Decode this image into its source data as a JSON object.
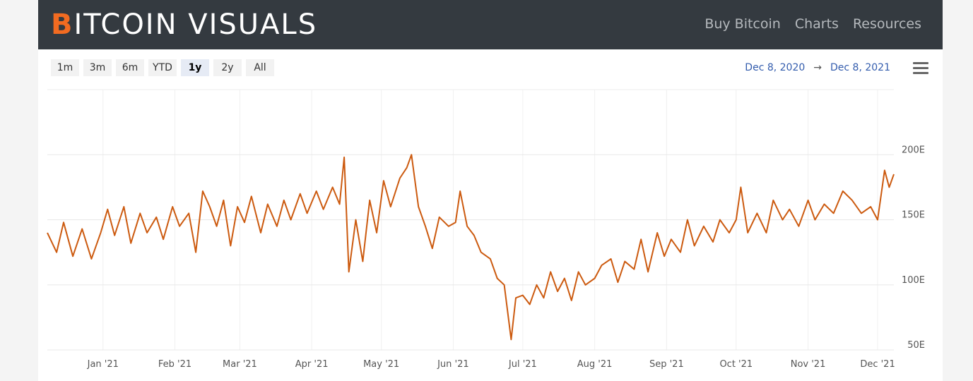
{
  "header": {
    "logo_mark": "B",
    "logo_text": "ITCOIN VISUALS",
    "nav": [
      "Buy Bitcoin",
      "Charts",
      "Resources"
    ]
  },
  "range_selector": {
    "buttons": [
      "1m",
      "3m",
      "6m",
      "YTD",
      "1y",
      "2y",
      "All"
    ],
    "selected": "1y",
    "from": "Dec 8, 2020",
    "arrow": "→",
    "to": "Dec 8, 2021"
  },
  "chart_data": {
    "type": "line",
    "color": "#cc5a0f",
    "grid": true,
    "x": [
      "2020-12-08",
      "2020-12-12",
      "2020-12-15",
      "2020-12-19",
      "2020-12-23",
      "2020-12-27",
      "2020-12-31",
      "2021-01-03",
      "2021-01-06",
      "2021-01-10",
      "2021-01-13",
      "2021-01-17",
      "2021-01-20",
      "2021-01-24",
      "2021-01-27",
      "2021-01-31",
      "2021-02-03",
      "2021-02-07",
      "2021-02-10",
      "2021-02-13",
      "2021-02-16",
      "2021-02-19",
      "2021-02-22",
      "2021-02-25",
      "2021-02-28",
      "2021-03-03",
      "2021-03-06",
      "2021-03-10",
      "2021-03-13",
      "2021-03-17",
      "2021-03-20",
      "2021-03-23",
      "2021-03-27",
      "2021-03-30",
      "2021-04-03",
      "2021-04-06",
      "2021-04-10",
      "2021-04-13",
      "2021-04-15",
      "2021-04-17",
      "2021-04-20",
      "2021-04-23",
      "2021-04-26",
      "2021-04-29",
      "2021-05-02",
      "2021-05-05",
      "2021-05-09",
      "2021-05-12",
      "2021-05-14",
      "2021-05-17",
      "2021-05-20",
      "2021-05-23",
      "2021-05-26",
      "2021-05-30",
      "2021-06-02",
      "2021-06-04",
      "2021-06-07",
      "2021-06-10",
      "2021-06-13",
      "2021-06-17",
      "2021-06-20",
      "2021-06-23",
      "2021-06-26",
      "2021-06-28",
      "2021-07-01",
      "2021-07-04",
      "2021-07-07",
      "2021-07-10",
      "2021-07-13",
      "2021-07-16",
      "2021-07-19",
      "2021-07-22",
      "2021-07-25",
      "2021-07-28",
      "2021-08-01",
      "2021-08-04",
      "2021-08-08",
      "2021-08-11",
      "2021-08-14",
      "2021-08-18",
      "2021-08-21",
      "2021-08-24",
      "2021-08-28",
      "2021-08-31",
      "2021-09-03",
      "2021-09-07",
      "2021-09-10",
      "2021-09-13",
      "2021-09-17",
      "2021-09-21",
      "2021-09-24",
      "2021-09-28",
      "2021-10-01",
      "2021-10-03",
      "2021-10-06",
      "2021-10-10",
      "2021-10-14",
      "2021-10-17",
      "2021-10-21",
      "2021-10-24",
      "2021-10-28",
      "2021-11-01",
      "2021-11-04",
      "2021-11-08",
      "2021-11-12",
      "2021-11-16",
      "2021-11-20",
      "2021-11-24",
      "2021-11-28",
      "2021-12-01",
      "2021-12-04",
      "2021-12-06",
      "2021-12-08"
    ],
    "values": [
      140,
      125,
      148,
      122,
      143,
      120,
      140,
      158,
      138,
      160,
      132,
      155,
      140,
      152,
      135,
      160,
      145,
      155,
      125,
      172,
      160,
      145,
      165,
      130,
      160,
      148,
      168,
      140,
      162,
      145,
      165,
      150,
      170,
      155,
      172,
      158,
      175,
      162,
      198,
      110,
      150,
      118,
      165,
      140,
      180,
      160,
      182,
      190,
      200,
      160,
      145,
      128,
      152,
      145,
      148,
      172,
      145,
      138,
      125,
      120,
      105,
      100,
      58,
      90,
      92,
      85,
      100,
      90,
      110,
      95,
      105,
      88,
      110,
      100,
      105,
      115,
      120,
      102,
      118,
      112,
      135,
      110,
      140,
      122,
      135,
      125,
      150,
      130,
      145,
      133,
      150,
      140,
      150,
      175,
      140,
      155,
      140,
      165,
      150,
      158,
      145,
      165,
      150,
      162,
      155,
      172,
      165,
      155,
      160,
      150,
      188,
      175,
      185
    ],
    "xlim": [
      "2020-12-08",
      "2021-12-08"
    ],
    "ylim": [
      50,
      250
    ],
    "yticks": [
      {
        "value": 50,
        "label": "50E"
      },
      {
        "value": 100,
        "label": "100E"
      },
      {
        "value": 150,
        "label": "150E"
      },
      {
        "value": 200,
        "label": "200E"
      }
    ],
    "xticks": [
      {
        "value": "2021-01-01",
        "label": "Jan '21"
      },
      {
        "value": "2021-02-01",
        "label": "Feb '21"
      },
      {
        "value": "2021-03-01",
        "label": "Mar '21"
      },
      {
        "value": "2021-04-01",
        "label": "Apr '21"
      },
      {
        "value": "2021-05-01",
        "label": "May '21"
      },
      {
        "value": "2021-06-01",
        "label": "Jun '21"
      },
      {
        "value": "2021-07-01",
        "label": "Jul '21"
      },
      {
        "value": "2021-08-01",
        "label": "Aug '21"
      },
      {
        "value": "2021-09-01",
        "label": "Sep '21"
      },
      {
        "value": "2021-10-01",
        "label": "Oct '21"
      },
      {
        "value": "2021-11-01",
        "label": "Nov '21"
      },
      {
        "value": "2021-12-01",
        "label": "Dec '21"
      }
    ]
  }
}
